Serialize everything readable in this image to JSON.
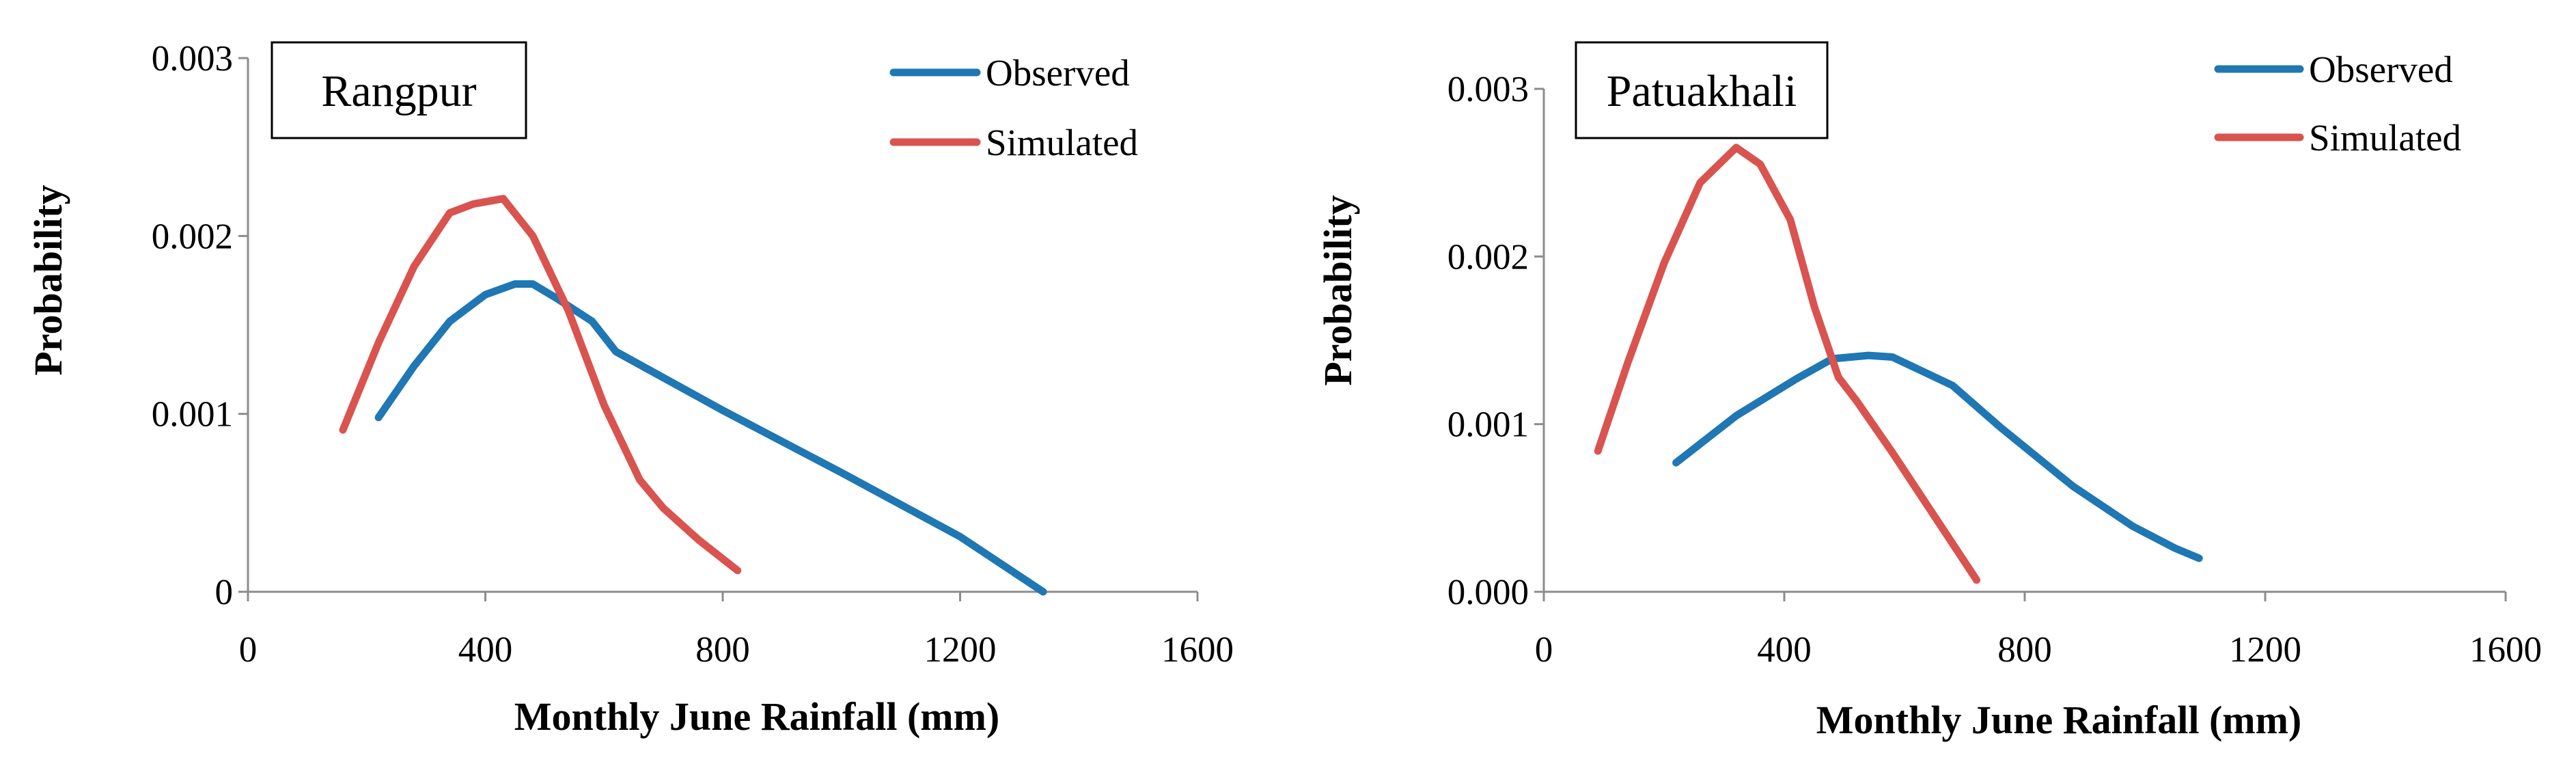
{
  "chart_data": [
    {
      "type": "line",
      "title": "Rangpur",
      "xlabel": "Monthly June Rainfall (mm)",
      "ylabel": "Probability",
      "xlim": [
        0,
        1600
      ],
      "ylim": [
        0,
        0.003
      ],
      "xticks": [
        0,
        400,
        800,
        1200,
        1600
      ],
      "xtick_labels": [
        "0",
        "400",
        "800",
        "1200",
        "1600"
      ],
      "yticks": [
        0,
        0.001,
        0.002,
        0.003
      ],
      "ytick_labels": [
        "0",
        "0.001",
        "0.002",
        "0.003"
      ],
      "legend_position": "top-right",
      "series": [
        {
          "name": "Observed",
          "color": "#1f77b4",
          "x": [
            220,
            280,
            340,
            400,
            450,
            480,
            520,
            580,
            620,
            800,
            1000,
            1200,
            1340
          ],
          "y": [
            0.00098,
            0.00127,
            0.00152,
            0.00167,
            0.00173,
            0.00173,
            0.00165,
            0.00152,
            0.00135,
            0.00102,
            0.00067,
            0.00031,
            0.0
          ]
        },
        {
          "name": "Simulated",
          "color": "#d9534f",
          "x": [
            160,
            220,
            280,
            340,
            380,
            430,
            480,
            540,
            600,
            660,
            700,
            760,
            825
          ],
          "y": [
            0.00091,
            0.0014,
            0.00183,
            0.00213,
            0.00218,
            0.00221,
            0.002,
            0.00158,
            0.00105,
            0.00063,
            0.00047,
            0.00029,
            0.00012
          ]
        }
      ]
    },
    {
      "type": "line",
      "title": "Patuakhali",
      "xlabel": "Monthly June Rainfall (mm)",
      "ylabel": "Probability",
      "xlim": [
        0,
        1600
      ],
      "ylim": [
        0,
        0.003
      ],
      "xticks": [
        0,
        400,
        800,
        1200,
        1600
      ],
      "xtick_labels": [
        "0",
        "400",
        "800",
        "1200",
        "1600"
      ],
      "yticks": [
        0,
        0.001,
        0.002,
        0.003
      ],
      "ytick_labels": [
        "0.000",
        "0.001",
        "0.002",
        "0.003"
      ],
      "legend_position": "top-right",
      "series": [
        {
          "name": "Observed",
          "color": "#1f77b4",
          "x": [
            220,
            320,
            420,
            480,
            540,
            580,
            680,
            760,
            880,
            980,
            1050,
            1090
          ],
          "y": [
            0.00077,
            0.00105,
            0.00127,
            0.00139,
            0.00141,
            0.0014,
            0.00123,
            0.00098,
            0.00063,
            0.00039,
            0.00026,
            0.0002
          ]
        },
        {
          "name": "Simulated",
          "color": "#d9534f",
          "x": [
            90,
            140,
            200,
            260,
            320,
            360,
            410,
            450,
            490,
            520,
            580,
            650,
            720
          ],
          "y": [
            0.00084,
            0.00137,
            0.00196,
            0.00244,
            0.00265,
            0.00255,
            0.00222,
            0.0017,
            0.00128,
            0.00114,
            0.00083,
            0.00045,
            7e-05
          ]
        }
      ]
    }
  ]
}
